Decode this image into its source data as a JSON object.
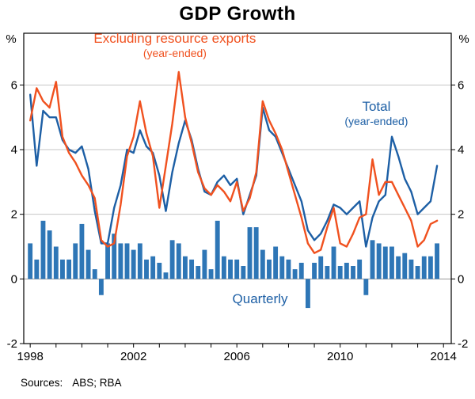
{
  "title": "GDP Growth",
  "footer": {
    "sources_label": "Sources:",
    "sources_value": "ABS; RBA"
  },
  "chart_data": {
    "type": "mixed",
    "title": "GDP Growth",
    "x_start": 1998.0,
    "x_step": 0.25,
    "x_axis": {
      "min": 1997.75,
      "max": 2014.3,
      "tick_interval": 1,
      "labels": [
        1998,
        2002,
        2006,
        2010,
        2014
      ]
    },
    "y_axis": {
      "min": -2,
      "max": 7.6,
      "ticks": [
        -2,
        0,
        2,
        4,
        6
      ],
      "unit_left": "%",
      "unit_right": "%"
    },
    "series": [
      {
        "name": "Quarterly",
        "type": "bar",
        "color": "#2e76b6",
        "values": [
          1.1,
          0.6,
          1.8,
          1.5,
          1.0,
          0.6,
          0.6,
          1.1,
          1.7,
          0.9,
          0.3,
          -0.5,
          1.1,
          1.4,
          1.1,
          1.1,
          0.9,
          1.1,
          0.6,
          0.7,
          0.5,
          0.2,
          1.2,
          1.1,
          0.7,
          0.6,
          0.4,
          0.9,
          0.3,
          1.8,
          0.7,
          0.6,
          0.6,
          0.4,
          1.6,
          1.6,
          0.9,
          0.6,
          1.0,
          0.7,
          0.6,
          0.3,
          0.5,
          -0.9,
          0.5,
          0.7,
          0.4,
          1.0,
          0.4,
          0.5,
          0.4,
          0.6,
          -0.5,
          1.2,
          1.1,
          1.0,
          1.0,
          0.7,
          0.8,
          0.6,
          0.4,
          0.7,
          0.7,
          1.1
        ]
      },
      {
        "name": "Total (year-ended)",
        "type": "line",
        "color": "#1d5fa5",
        "values": [
          5.7,
          3.5,
          5.2,
          5.0,
          5.0,
          4.3,
          4.0,
          3.9,
          4.1,
          3.4,
          2.1,
          1.1,
          1.1,
          2.2,
          2.9,
          4.0,
          3.9,
          4.6,
          4.1,
          3.9,
          3.2,
          2.1,
          3.3,
          4.2,
          4.9,
          4.3,
          3.4,
          2.7,
          2.6,
          3.0,
          3.2,
          2.9,
          3.1,
          2.0,
          2.6,
          3.2,
          5.3,
          4.6,
          4.4,
          3.9,
          3.4,
          2.9,
          2.4,
          1.5,
          1.2,
          1.4,
          1.8,
          2.3,
          2.2,
          2.0,
          2.2,
          2.4,
          1.0,
          1.9,
          2.4,
          2.6,
          4.4,
          3.8,
          3.1,
          2.7,
          2.0,
          2.2,
          2.4,
          3.5
        ]
      },
      {
        "name": "Excluding resource exports (year-ended)",
        "type": "line",
        "color": "#f0511f",
        "values": [
          4.9,
          5.9,
          5.5,
          5.3,
          6.1,
          4.4,
          3.9,
          3.6,
          3.2,
          2.9,
          2.5,
          1.2,
          1.0,
          1.1,
          2.3,
          3.8,
          4.4,
          5.5,
          4.5,
          3.8,
          2.2,
          3.5,
          4.8,
          6.4,
          5.0,
          4.2,
          3.3,
          2.8,
          2.6,
          2.9,
          2.7,
          2.4,
          3.0,
          2.1,
          2.5,
          3.3,
          5.5,
          4.9,
          4.5,
          4.0,
          3.3,
          2.6,
          1.9,
          1.1,
          0.8,
          0.9,
          1.6,
          2.2,
          1.1,
          1.0,
          1.4,
          1.9,
          2.0,
          3.7,
          2.6,
          3.0,
          3.0,
          2.6,
          2.2,
          1.8,
          1.0,
          1.2,
          1.7,
          1.8
        ]
      }
    ],
    "annotations": [
      {
        "text": "Excluding resource exports",
        "sub": "(year-ended)",
        "color": "#f0511f",
        "x": 2003.6,
        "y": 7.3
      },
      {
        "text": "Total",
        "sub": "(year-ended)",
        "color": "#1d5fa5",
        "x": 2011.4,
        "y": 5.2
      },
      {
        "text": "Quarterly",
        "sub": "",
        "color": "#1d5fa5",
        "x": 2006.9,
        "y": -0.75
      }
    ]
  }
}
